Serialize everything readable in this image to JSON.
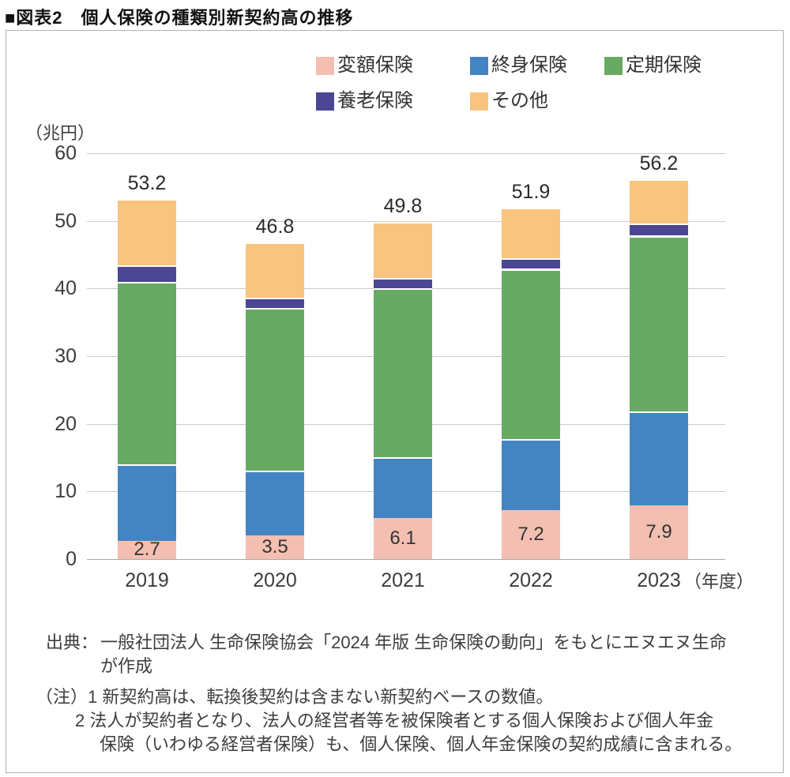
{
  "page_title": "■図表2　個人保険の種類別新契約高の推移",
  "unit_label": "（兆円）",
  "chart_data": {
    "type": "bar",
    "stacked": true,
    "title": "個人保険の種類別新契約高の推移",
    "unit": "兆円",
    "categories": [
      "2019",
      "2020",
      "2021",
      "2022",
      "2023"
    ],
    "x_axis_suffix": "（年度）",
    "series": [
      {
        "name": "変額保険",
        "color": "#f4bfb1",
        "values": [
          2.7,
          3.5,
          6.1,
          7.2,
          7.9
        ]
      },
      {
        "name": "終身保険",
        "color": "#4385c3",
        "values": [
          11.3,
          9.6,
          9.0,
          10.6,
          13.9
        ]
      },
      {
        "name": "定期保険",
        "color": "#68a963",
        "values": [
          27.0,
          24.0,
          24.9,
          25.1,
          26.0
        ]
      },
      {
        "name": "養老保険",
        "color": "#4c4694",
        "values": [
          2.4,
          1.5,
          1.6,
          1.6,
          1.8
        ]
      },
      {
        "name": "その他",
        "color": "#f9c47d",
        "values": [
          9.8,
          8.2,
          8.2,
          7.4,
          6.6
        ]
      }
    ],
    "totals": [
      "53.2",
      "46.8",
      "49.8",
      "51.9",
      "56.2"
    ],
    "bar_value_labels": {
      "series": "変額保険",
      "values": [
        "2.7",
        "3.5",
        "6.1",
        "7.2",
        "7.9"
      ]
    },
    "ylabel": "（兆円）",
    "ylim": [
      0,
      60
    ],
    "yticks": [
      0,
      10,
      20,
      30,
      40,
      50,
      60
    ],
    "grid": true,
    "legend_position": "top"
  },
  "footer": {
    "source_label": "出典：",
    "source_line1": "一般社団法人 生命保険協会「2024 年版 生命保険の動向」をもとにエヌエヌ生命",
    "source_line2": "が作成",
    "note_line1": "（注）1 新契約高は、転換後契約は含まない新契約ベースの数値。",
    "note_line2": "2 法人が契約者となり、法人の経営者等を被保険者とする個人保険および個人年金",
    "note_line3": "保険（いわゆる経営者保険）も、個人保険、個人年金保険の契約成績に含まれる。"
  }
}
